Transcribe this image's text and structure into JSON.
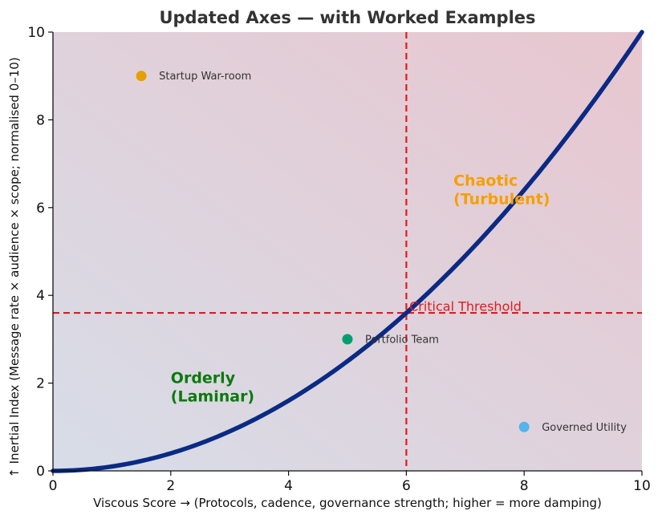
{
  "chart_data": {
    "type": "line",
    "title": "Updated Axes — with Worked Examples",
    "xlabel": "Viscous Score → (Protocols, cadence, governance strength; higher = more damping)",
    "ylabel": "↑ Inertial Index (Message rate × audience × scope; normalised 0–10)",
    "xlim": [
      0,
      10
    ],
    "ylim": [
      0,
      10
    ],
    "x_ticks": [
      "0",
      "2",
      "4",
      "6",
      "8",
      "10"
    ],
    "y_ticks": [
      "0",
      "2",
      "4",
      "6",
      "8",
      "10"
    ],
    "x_tick_values": [
      0,
      2,
      4,
      6,
      8,
      10
    ],
    "y_tick_values": [
      0,
      2,
      4,
      6,
      8,
      10
    ],
    "grid": false,
    "curve": {
      "equation": "y = 0.1 * x^2",
      "x": [
        0,
        0.5,
        1,
        1.5,
        2,
        2.5,
        3,
        3.5,
        4,
        4.5,
        5,
        5.5,
        6,
        6.5,
        7,
        7.5,
        8,
        8.5,
        9,
        9.5,
        10
      ],
      "y": [
        0,
        0.025,
        0.1,
        0.225,
        0.4,
        0.625,
        0.9,
        1.225,
        1.6,
        2.025,
        2.5,
        3.025,
        3.6,
        4.225,
        4.9,
        5.625,
        6.4,
        7.225,
        8.1,
        9.025,
        10
      ],
      "color": "#0a2a84"
    },
    "thresholds": {
      "vertical_x": 6,
      "horizontal_y": 3.6,
      "label": "Critical Threshold",
      "label_x": 6.05,
      "label_y": 3.65,
      "color": "#e31a1c"
    },
    "points": [
      {
        "label": "Startup War-room",
        "x": 1.5,
        "y": 9,
        "color": "#e69f00"
      },
      {
        "label": "Portfolio Team",
        "x": 5,
        "y": 3,
        "color": "#009e73"
      },
      {
        "label": "Governed Utility",
        "x": 8,
        "y": 1,
        "color": "#56b4e9"
      }
    ],
    "regions": [
      {
        "lines": [
          "Chaotic",
          "(Turbulent)"
        ],
        "x": 6.8,
        "y": 6.5,
        "color": "#f5a000"
      },
      {
        "lines": [
          "Orderly",
          "(Laminar)"
        ],
        "x": 2.0,
        "y": 2.0,
        "color": "#0b7a0b"
      }
    ],
    "background_gradient": {
      "bottom_left": "#d7dde8",
      "top_right": "#e8c6cf"
    }
  }
}
